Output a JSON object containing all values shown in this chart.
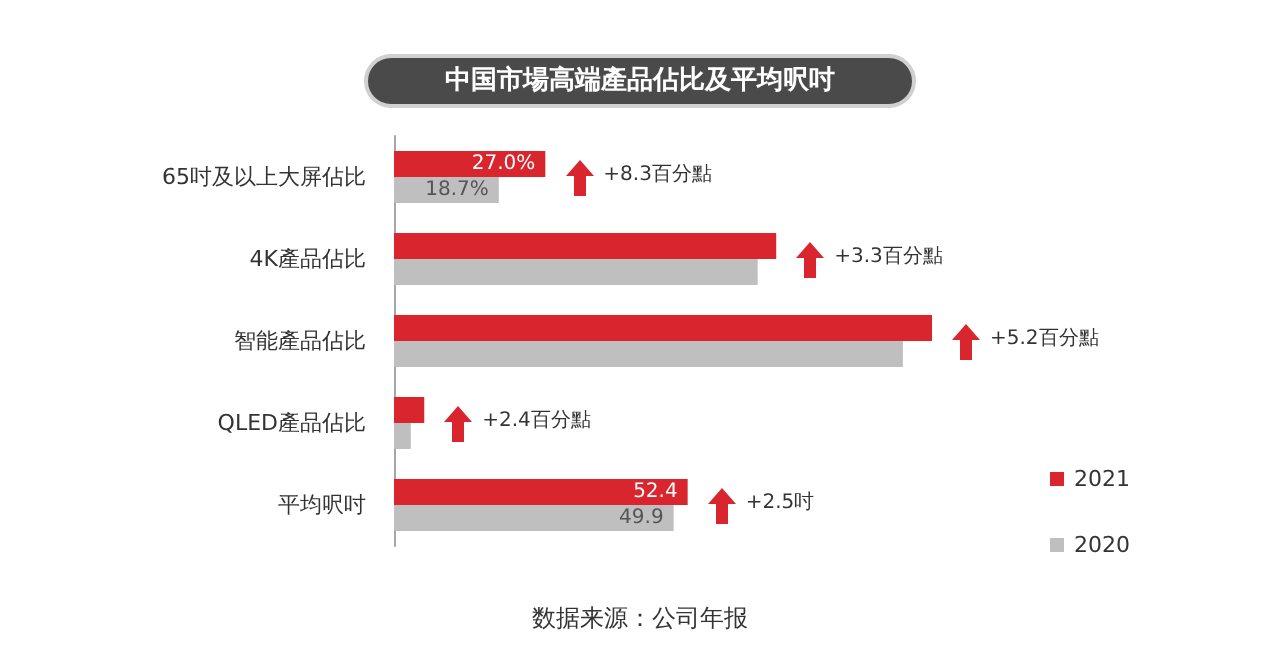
{
  "chart_data": {
    "type": "bar",
    "orientation": "horizontal",
    "title": "中国市場高端產品佔比及平均呎吋",
    "categories": [
      "65吋及以上大屏佔比",
      "4K產品佔比",
      "智能產品佔比",
      "QLED產品佔比",
      "平均呎吋"
    ],
    "series": [
      {
        "name": "2021",
        "color": "#d9262e",
        "values": [
          27.0,
          68.2,
          96.0,
          5.4,
          52.4
        ],
        "value_labels": [
          "27.0%",
          null,
          null,
          null,
          "52.4"
        ]
      },
      {
        "name": "2020",
        "color": "#bfbfbf",
        "values": [
          18.7,
          64.9,
          90.8,
          3.0,
          49.9
        ],
        "value_labels": [
          "18.7%",
          null,
          null,
          null,
          "49.9"
        ]
      }
    ],
    "xlim": [
      0,
      96
    ],
    "tick_labels": "y",
    "annotations": [
      {
        "text": "+8.3百分點",
        "y": "65吋及以上大屏佔比",
        "x": 27.0
      },
      {
        "text": "+3.3百分點",
        "y": "4K產品佔比",
        "x": 68.2
      },
      {
        "text": "+5.2百分點",
        "y": "智能產品佔比",
        "x": 96.0
      },
      {
        "text": "+2.4百分點",
        "y": "QLED產品佔比",
        "x": 5.4
      },
      {
        "text": "+2.5吋",
        "y": "平均呎吋",
        "x": 52.4
      },
      "数据来源：公司年报"
    ],
    "legend": "bottom right"
  }
}
